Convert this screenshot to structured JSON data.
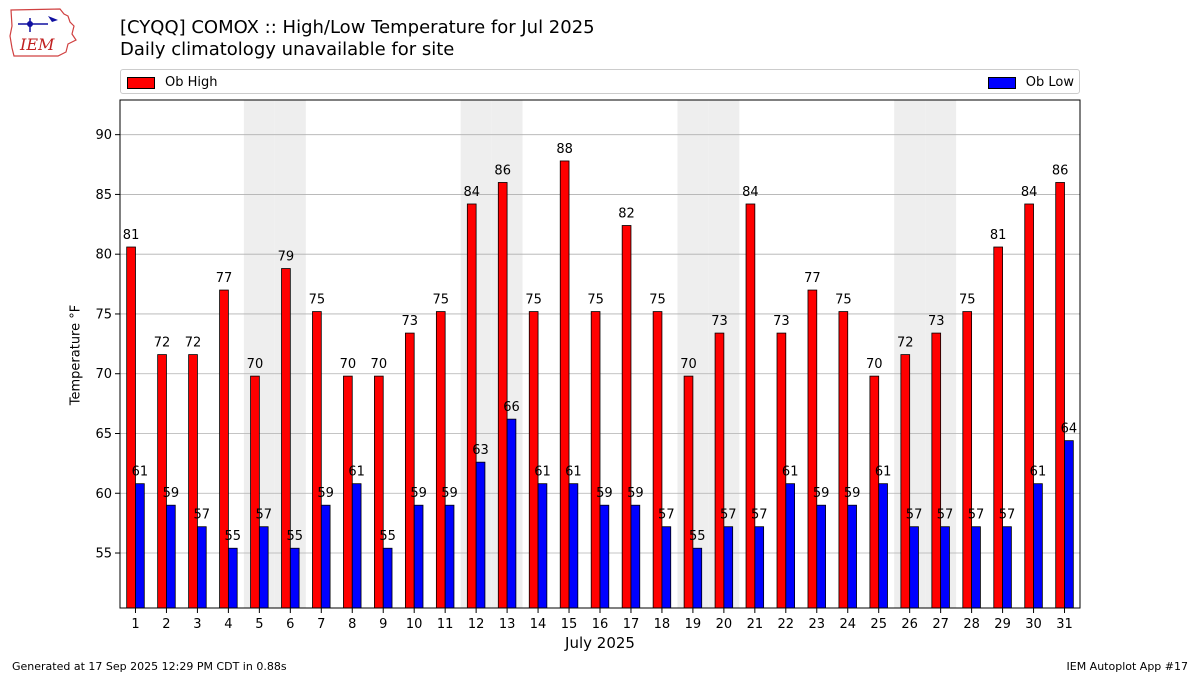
{
  "header": {
    "title_line1": "[CYQQ] COMOX :: High/Low Temperature for Jul 2025",
    "title_line2": "Daily climatology unavailable for site",
    "logo_text": "IEM"
  },
  "legend": {
    "high_label": "Ob High",
    "low_label": "Ob Low"
  },
  "footer": {
    "generated": "Generated at 17 Sep 2025 12:29 PM CDT in 0.88s",
    "app": "IEM Autoplot App #17"
  },
  "colors": {
    "high": "#ff0000",
    "low": "#0000ff",
    "weekend_band": "#eeeeee",
    "grid": "#b0b0b0"
  },
  "chart_data": {
    "type": "bar",
    "xlabel": "July 2025",
    "ylabel": "Temperature °F",
    "ylim": [
      50.4,
      92.9
    ],
    "yticks": [
      55,
      60,
      65,
      70,
      75,
      80,
      85,
      90
    ],
    "grid": "horizontal",
    "legend_placement": "top",
    "shaded_days": [
      5,
      6,
      12,
      13,
      19,
      20,
      26,
      27
    ],
    "categories": [
      "1",
      "2",
      "3",
      "4",
      "5",
      "6",
      "7",
      "8",
      "9",
      "10",
      "11",
      "12",
      "13",
      "14",
      "15",
      "16",
      "17",
      "18",
      "19",
      "20",
      "21",
      "22",
      "23",
      "24",
      "25",
      "26",
      "27",
      "28",
      "29",
      "30",
      "31"
    ],
    "series": [
      {
        "name": "Ob High",
        "values": [
          80.6,
          71.6,
          71.6,
          77.0,
          69.8,
          78.8,
          75.2,
          69.8,
          69.8,
          73.4,
          75.2,
          84.2,
          86.0,
          75.2,
          87.8,
          75.2,
          82.4,
          75.2,
          69.8,
          73.4,
          84.2,
          73.4,
          77.0,
          75.2,
          69.8,
          71.6,
          73.4,
          75.2,
          80.6,
          84.2,
          86.0
        ],
        "labels": [
          "81",
          "72",
          "72",
          "77",
          "70",
          "79",
          "75",
          "70",
          "70",
          "73",
          "75",
          "84",
          "86",
          "75",
          "88",
          "75",
          "82",
          "75",
          "70",
          "73",
          "84",
          "73",
          "77",
          "75",
          "70",
          "72",
          "73",
          "75",
          "81",
          "84",
          "86"
        ]
      },
      {
        "name": "Ob Low",
        "values": [
          60.8,
          59.0,
          57.2,
          55.4,
          57.2,
          55.4,
          59.0,
          60.8,
          55.4,
          59.0,
          59.0,
          62.6,
          66.2,
          60.8,
          60.8,
          59.0,
          59.0,
          57.2,
          55.4,
          57.2,
          57.2,
          60.8,
          59.0,
          59.0,
          60.8,
          57.2,
          57.2,
          57.2,
          57.2,
          60.8,
          64.4
        ],
        "labels": [
          "61",
          "59",
          "57",
          "55",
          "57",
          "55",
          "59",
          "61",
          "55",
          "59",
          "59",
          "63",
          "66",
          "61",
          "61",
          "59",
          "59",
          "57",
          "55",
          "57",
          "57",
          "61",
          "59",
          "59",
          "61",
          "57",
          "57",
          "57",
          "57",
          "61",
          "64"
        ]
      }
    ]
  }
}
